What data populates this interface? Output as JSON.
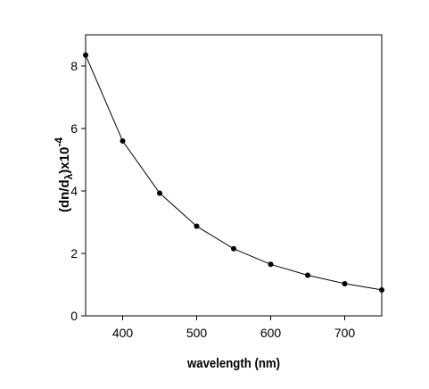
{
  "chart_data": {
    "type": "line",
    "title": "",
    "xlabel": "wavelength (nm)",
    "ylabel": {
      "base": "(dn/d",
      "subscript": "λ",
      "rest": ")x10",
      "superscript": "-4"
    },
    "xlim": [
      350,
      750
    ],
    "ylim": [
      0,
      9
    ],
    "x_ticks": [
      400,
      500,
      600,
      700
    ],
    "y_ticks": [
      0,
      2,
      4,
      6,
      8
    ],
    "grid": false,
    "legend": "none",
    "series": [
      {
        "x": [
          350,
          400,
          450,
          500,
          550,
          600,
          650,
          700,
          750
        ],
        "y": [
          8.35,
          5.6,
          3.93,
          2.87,
          2.15,
          1.65,
          1.3,
          1.03,
          0.83
        ]
      }
    ],
    "colors": {
      "line": "#000000",
      "marker": "#000000",
      "frame": "#000000"
    }
  }
}
